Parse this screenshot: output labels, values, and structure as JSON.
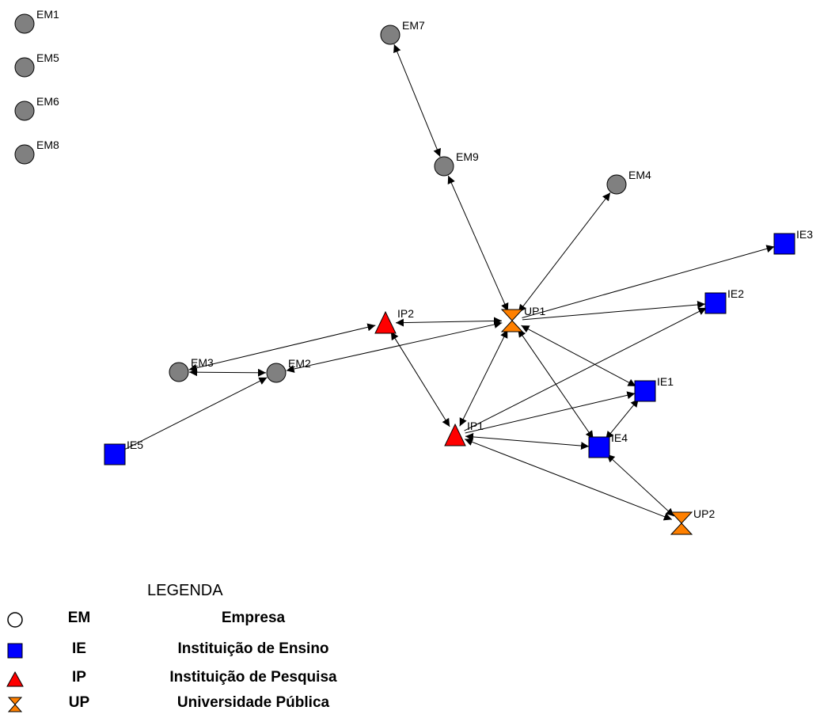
{
  "colors": {
    "EM": "#808080",
    "IE": "#0000ff",
    "IP": "#ff0000",
    "UP": "#ff8000",
    "edge": "#000000",
    "background": "#ffffff"
  },
  "nodes": [
    {
      "id": "EM1",
      "label": "EM1",
      "type": "EM"
    },
    {
      "id": "EM5",
      "label": "EM5",
      "type": "EM"
    },
    {
      "id": "EM6",
      "label": "EM6",
      "type": "EM"
    },
    {
      "id": "EM8",
      "label": "EM8",
      "type": "EM"
    },
    {
      "id": "EM7",
      "label": "EM7",
      "type": "EM"
    },
    {
      "id": "EM9",
      "label": "EM9",
      "type": "EM"
    },
    {
      "id": "EM4",
      "label": "EM4",
      "type": "EM"
    },
    {
      "id": "EM3",
      "label": "EM3",
      "type": "EM"
    },
    {
      "id": "EM2",
      "label": "EM2",
      "type": "EM"
    },
    {
      "id": "IE3",
      "label": "IE3",
      "type": "IE"
    },
    {
      "id": "IE2",
      "label": "IE2",
      "type": "IE"
    },
    {
      "id": "IE1",
      "label": "IE1",
      "type": "IE"
    },
    {
      "id": "IE4",
      "label": "IE4",
      "type": "IE"
    },
    {
      "id": "IE5",
      "label": "IE5",
      "type": "IE"
    },
    {
      "id": "IP2",
      "label": "IP2",
      "type": "IP"
    },
    {
      "id": "IP1",
      "label": "IP1",
      "type": "IP"
    },
    {
      "id": "UP1",
      "label": "UP1",
      "type": "UP"
    },
    {
      "id": "UP2",
      "label": "UP2",
      "type": "UP"
    }
  ],
  "edges": [
    {
      "from": "EM7",
      "to": "EM9",
      "arrows": "both"
    },
    {
      "from": "EM9",
      "to": "UP1",
      "arrows": "both"
    },
    {
      "from": "UP1",
      "to": "EM4",
      "arrows": "both"
    },
    {
      "from": "UP1",
      "to": "IE3",
      "arrows": "end"
    },
    {
      "from": "UP1",
      "to": "IE2",
      "arrows": "end"
    },
    {
      "from": "IP2",
      "to": "UP1",
      "arrows": "both"
    },
    {
      "from": "EM3",
      "to": "IP2",
      "arrows": "both"
    },
    {
      "from": "EM3",
      "to": "EM2",
      "arrows": "both"
    },
    {
      "from": "EM2",
      "to": "UP1",
      "arrows": "both"
    },
    {
      "from": "IE5",
      "to": "EM2",
      "arrows": "end"
    },
    {
      "from": "IP2",
      "to": "IP1",
      "arrows": "both"
    },
    {
      "from": "IP1",
      "to": "UP1",
      "arrows": "both"
    },
    {
      "from": "UP1",
      "to": "IE1",
      "arrows": "both"
    },
    {
      "from": "UP1",
      "to": "IE4",
      "arrows": "both"
    },
    {
      "from": "IP1",
      "to": "IE2",
      "arrows": "end"
    },
    {
      "from": "IP1",
      "to": "IE1",
      "arrows": "end"
    },
    {
      "from": "IP1",
      "to": "IE4",
      "arrows": "both"
    },
    {
      "from": "IE1",
      "to": "IE4",
      "arrows": "both"
    },
    {
      "from": "IE4",
      "to": "UP2",
      "arrows": "both"
    },
    {
      "from": "UP2",
      "to": "IP1",
      "arrows": "both"
    }
  ],
  "legend": {
    "title": "LEGENDA",
    "items": [
      {
        "shape": "circle",
        "code": "EM",
        "description": "Empresa"
      },
      {
        "shape": "square",
        "code": "IE",
        "description": "Instituição de Ensino"
      },
      {
        "shape": "triangle",
        "code": "IP",
        "description": "Instituição de Pesquisa"
      },
      {
        "shape": "hourglass",
        "code": "UP",
        "description": "Universidade Pública"
      }
    ]
  }
}
